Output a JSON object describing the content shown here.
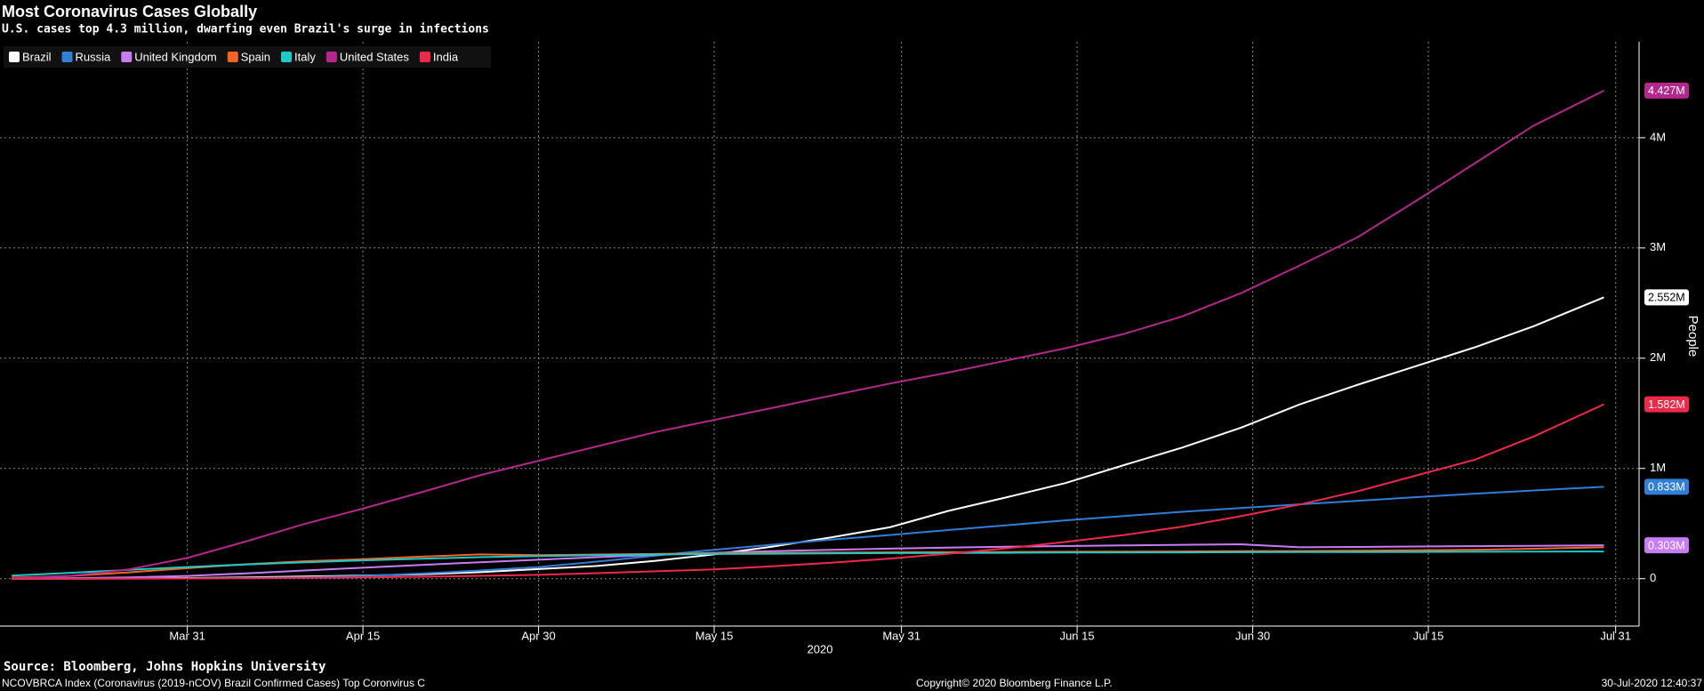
{
  "chart_data": {
    "type": "line",
    "title": "Most Coronavirus Cases Globally",
    "subtitle": "U.S. cases top 4.3 million, dwarfing even Brazil's surge in infections",
    "x_label": "2020",
    "y_label": "People",
    "grid": true,
    "legend_position": "top-left",
    "x": [
      "2020-03-16",
      "2020-03-21",
      "2020-03-26",
      "2020-03-31",
      "2020-04-05",
      "2020-04-10",
      "2020-04-15",
      "2020-04-20",
      "2020-04-25",
      "2020-04-30",
      "2020-05-05",
      "2020-05-10",
      "2020-05-15",
      "2020-05-20",
      "2020-05-25",
      "2020-05-30",
      "2020-06-04",
      "2020-06-09",
      "2020-06-14",
      "2020-06-19",
      "2020-06-24",
      "2020-06-29",
      "2020-07-04",
      "2020-07-09",
      "2020-07-14",
      "2020-07-19",
      "2020-07-24",
      "2020-07-30"
    ],
    "xlim": [
      "2020-03-15",
      "2020-08-02"
    ],
    "xticks": [
      {
        "value": "2020-03-31",
        "label": "Mar 31"
      },
      {
        "value": "2020-04-15",
        "label": "Apr 15"
      },
      {
        "value": "2020-04-30",
        "label": "Apr 30"
      },
      {
        "value": "2020-05-15",
        "label": "May 15"
      },
      {
        "value": "2020-05-31",
        "label": "May 31"
      },
      {
        "value": "2020-06-15",
        "label": "Jun 15"
      },
      {
        "value": "2020-06-30",
        "label": "Jun 30"
      },
      {
        "value": "2020-07-15",
        "label": "Jul 15"
      },
      {
        "value": "2020-07-31",
        "label": "Jul 31"
      }
    ],
    "ylim": [
      -430000,
      4870000
    ],
    "yticks": [
      0,
      {
        "value": 1000000,
        "label": "1M"
      },
      {
        "value": 2000000,
        "label": "2M"
      },
      {
        "value": 3000000,
        "label": "3M"
      },
      {
        "value": 4000000,
        "label": "4M"
      }
    ],
    "series": [
      {
        "name": "Brazil",
        "color": "#ffffff",
        "end_label": "2.552M",
        "values": [
          200,
          1000,
          2900,
          5700,
          11000,
          19000,
          28000,
          40000,
          59000,
          87000,
          115000,
          162000,
          220000,
          291000,
          375000,
          466000,
          615000,
          739000,
          867000,
          1030000,
          1190000,
          1370000,
          1580000,
          1760000,
          1930000,
          2100000,
          2290000,
          2552000
        ]
      },
      {
        "name": "Russia",
        "color": "#2f7ed8",
        "end_label": "0.833M",
        "values": [
          90,
          300,
          840,
          2300,
          6300,
          12000,
          24000,
          47000,
          74000,
          106000,
          155000,
          210000,
          262000,
          308000,
          354000,
          396000,
          441000,
          485000,
          529000,
          569000,
          607000,
          641000,
          674000,
          707000,
          740000,
          771000,
          800000,
          833000
        ]
      },
      {
        "name": "United Kingdom",
        "color": "#c77cf5",
        "end_label": "0.303M",
        "values": [
          1500,
          5000,
          11600,
          25000,
          48000,
          74000,
          99000,
          125000,
          149000,
          172000,
          195000,
          216000,
          235000,
          249000,
          262000,
          273000,
          282000,
          290000,
          296000,
          302000,
          307000,
          312000,
          285000,
          288000,
          292000,
          295000,
          298000,
          303000
        ]
      },
      {
        "name": "Spain",
        "color": "#f26522",
        "values": [
          9900,
          25000,
          57000,
          95000,
          131000,
          158000,
          177000,
          200000,
          220000,
          213000,
          219000,
          224000,
          230000,
          233000,
          236000,
          239000,
          240000,
          242000,
          244000,
          245000,
          247000,
          249000,
          251000,
          253000,
          257000,
          262000,
          272000,
          285000
        ]
      },
      {
        "name": "Italy",
        "color": "#1ec9c9",
        "values": [
          28000,
          53000,
          80000,
          106000,
          129000,
          148000,
          166000,
          181000,
          195000,
          205000,
          213000,
          219000,
          224000,
          227000,
          230000,
          232000,
          234000,
          235000,
          237000,
          238000,
          239000,
          240000,
          241000,
          242000,
          243000,
          244000,
          245000,
          247000
        ]
      },
      {
        "name": "United States",
        "color": "#b5278c",
        "end_label": "4.427M",
        "values": [
          4600,
          25000,
          85000,
          188000,
          337000,
          496000,
          636000,
          784000,
          938000,
          1070000,
          1200000,
          1330000,
          1440000,
          1550000,
          1660000,
          1770000,
          1870000,
          1980000,
          2090000,
          2220000,
          2380000,
          2590000,
          2840000,
          3100000,
          3430000,
          3770000,
          4110000,
          4427000
        ]
      },
      {
        "name": "India",
        "color": "#f0284a",
        "end_label": "1.582M",
        "values": [
          100,
          300,
          700,
          1400,
          4300,
          7600,
          12000,
          18000,
          26000,
          35000,
          50000,
          67000,
          85000,
          112000,
          145000,
          182000,
          227000,
          276000,
          333000,
          396000,
          473000,
          567000,
          673000,
          794000,
          937000,
          1080000,
          1290000,
          1582000
        ]
      }
    ],
    "source": "Source: Bloomberg, Johns Hopkins University",
    "footer_left": "NCOVBRCA Index (Coronavirus (2019-nCOV) Brazil Confirmed Cases) Top Coronvirus C",
    "footer_center": "Copyright© 2020 Bloomberg Finance L.P.",
    "footer_right": "30-Jul-2020 12:40:37"
  }
}
